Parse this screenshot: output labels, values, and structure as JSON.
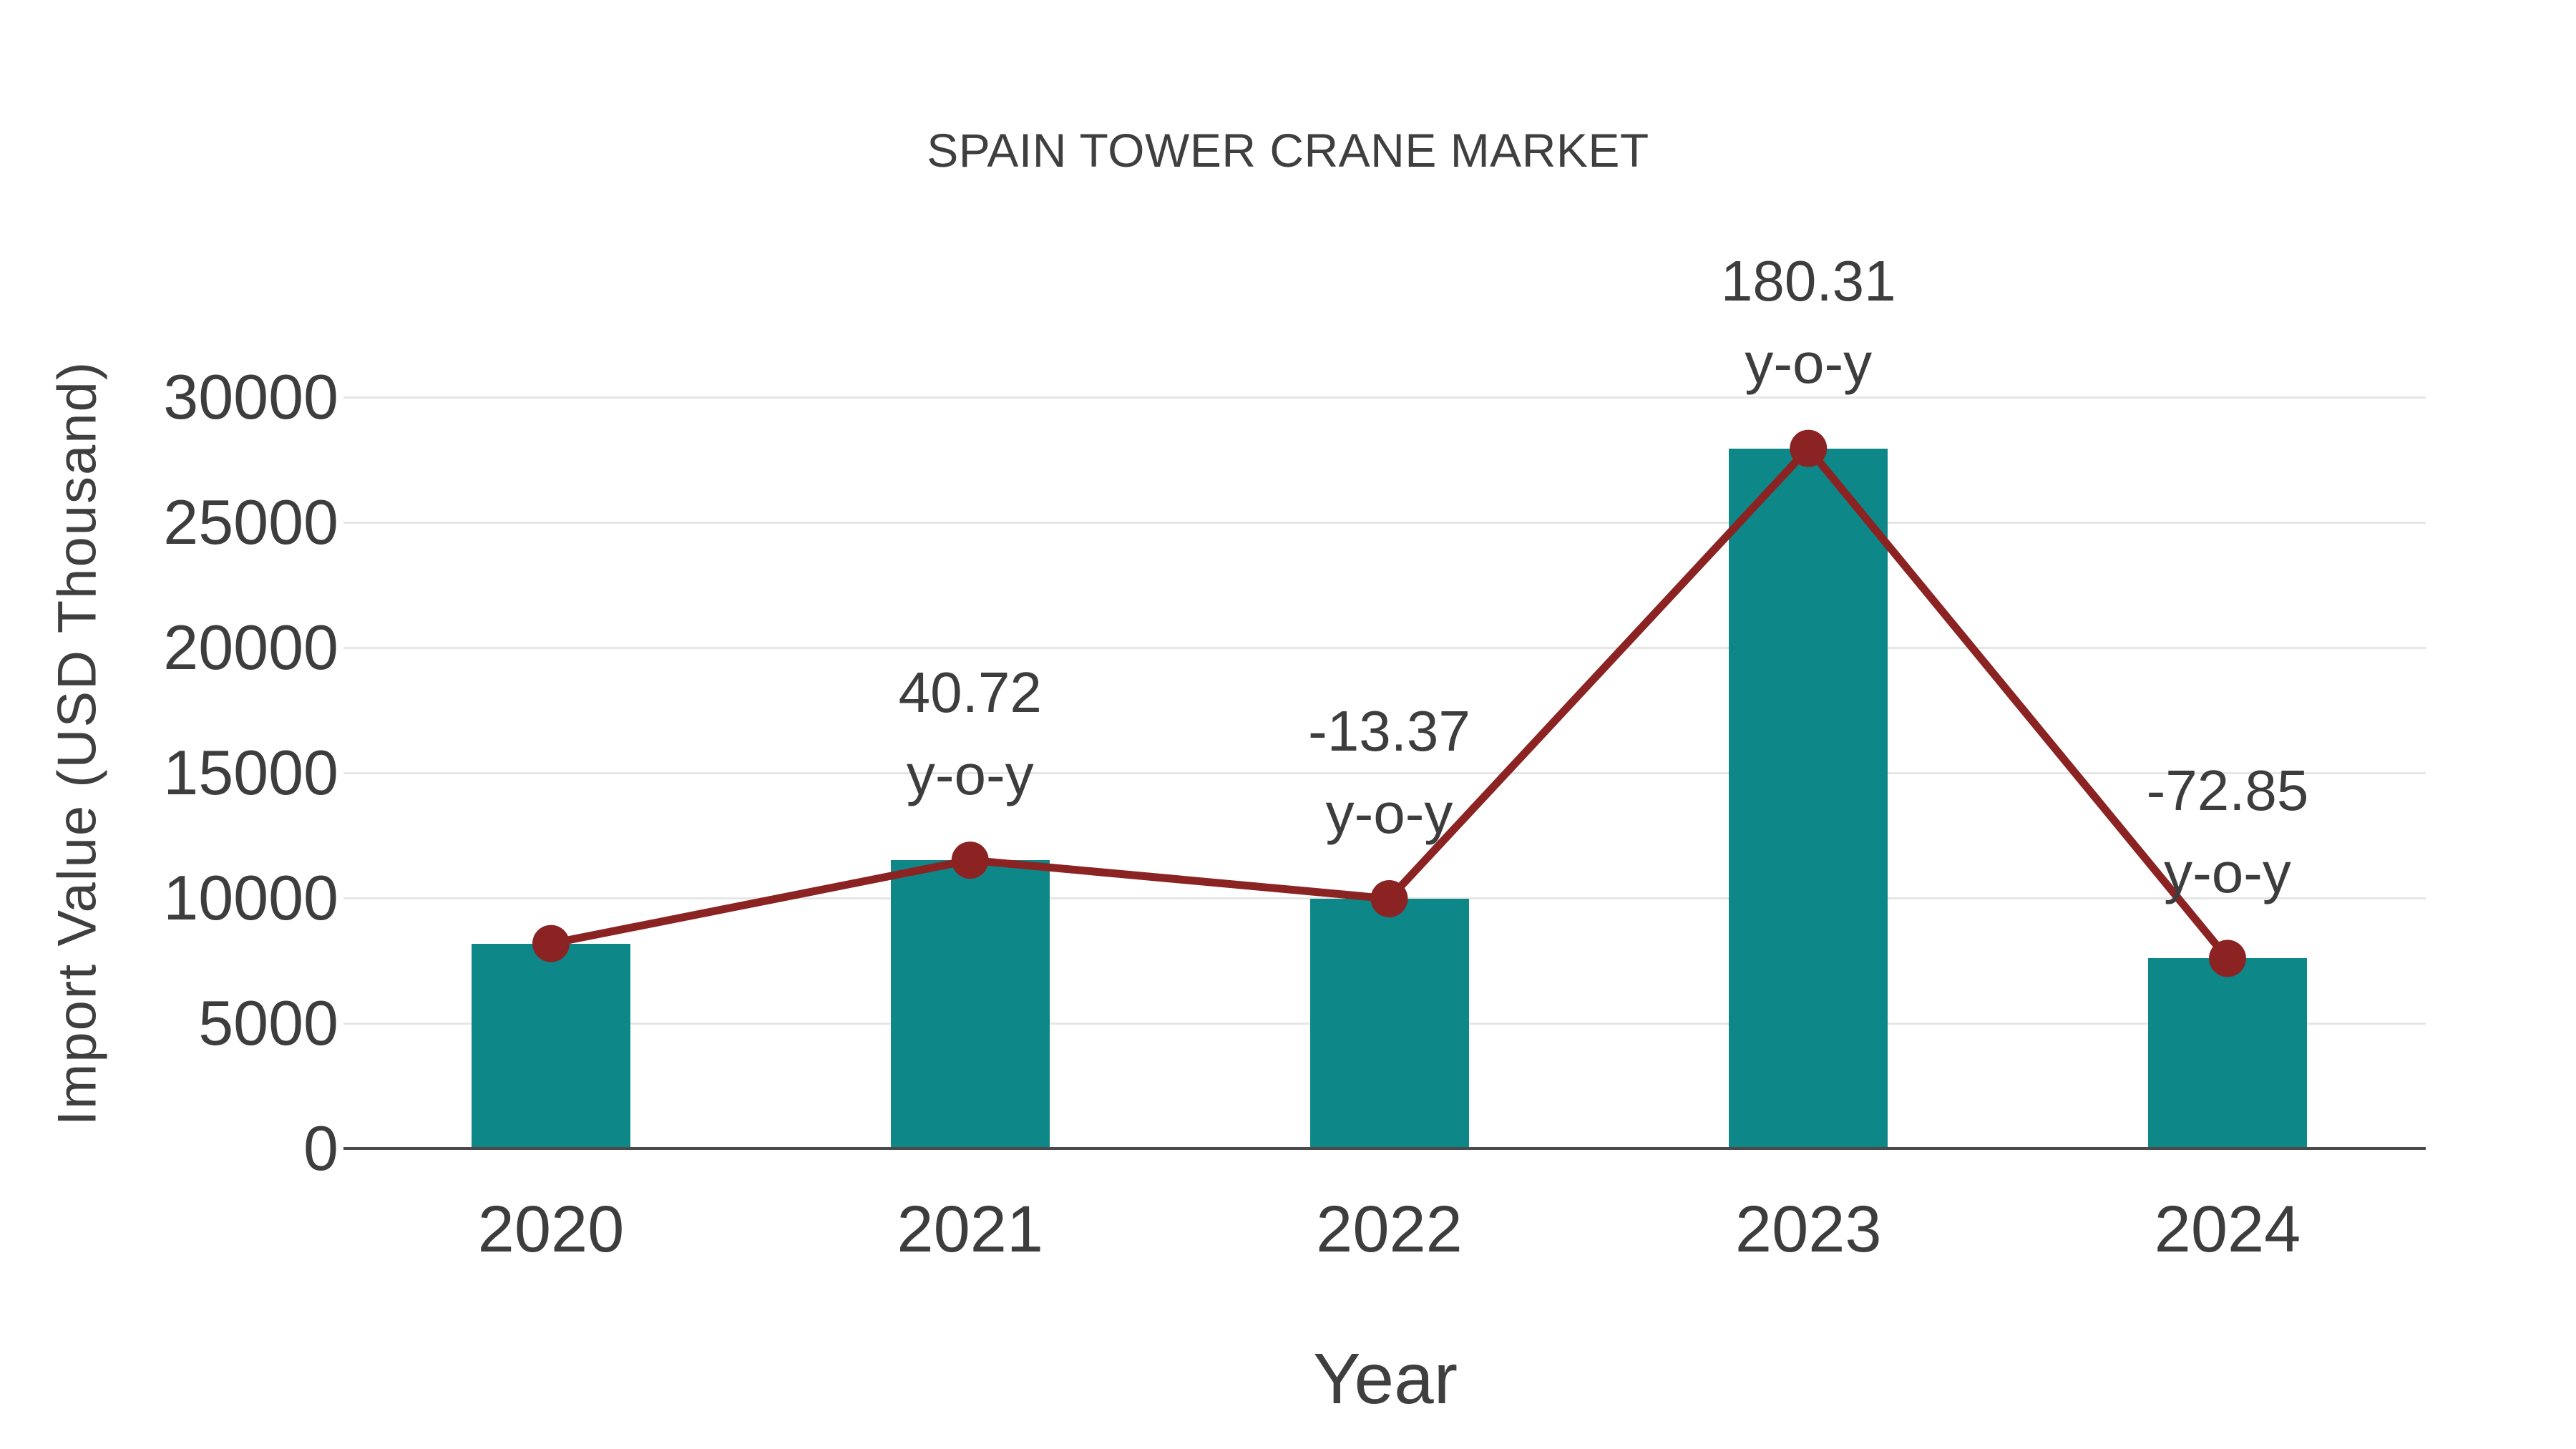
{
  "chart_data": {
    "type": "bar",
    "title": "SPAIN TOWER CRANE MARKET",
    "xlabel": "Year",
    "ylabel": "Import Value (USD Thousand)",
    "categories": [
      "2020",
      "2021",
      "2022",
      "2023",
      "2024"
    ],
    "series": [
      {
        "name": "Import Value (bars)",
        "type": "bar",
        "values": [
          8181,
          11512,
          9973,
          27955,
          7590
        ],
        "color": "#0e8789"
      },
      {
        "name": "Import Value trend (line with markers)",
        "type": "line",
        "values": [
          8181,
          11512,
          9973,
          27955,
          7590
        ],
        "color": "#8b2323"
      }
    ],
    "annotations": [
      {
        "category": "2021",
        "line1": "40.72",
        "line2": "y-o-y"
      },
      {
        "category": "2022",
        "line1": "-13.37",
        "line2": "y-o-y"
      },
      {
        "category": "2023",
        "line1": "180.31",
        "line2": "y-o-y"
      },
      {
        "category": "2024",
        "line1": "-72.85",
        "line2": "y-o-y"
      }
    ],
    "yticks": [
      0,
      5000,
      10000,
      15000,
      20000,
      25000,
      30000
    ],
    "ylim": [
      0,
      30000
    ],
    "grid": true,
    "legend_position": "none",
    "colors": {
      "bar": "#0e8789",
      "line": "#8b2323",
      "marker": "#8b2323",
      "text": "#3d3d3d",
      "grid": "#e6e6e6",
      "axis": "#4a4a4a",
      "background": "#ffffff"
    }
  }
}
